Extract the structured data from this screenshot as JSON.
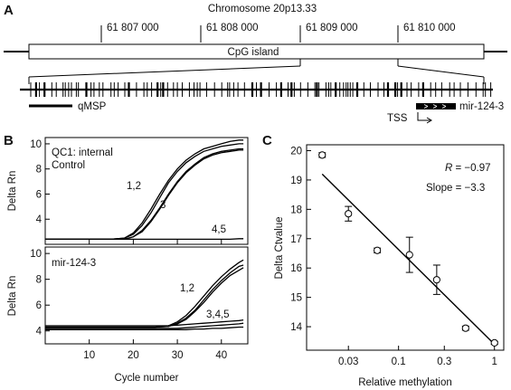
{
  "panel_a": {
    "letter": "A",
    "title": "Chromosome 20p13.33",
    "coords": [
      "61 807 000",
      "61 808 000",
      "61 809 000",
      "61 810 000"
    ],
    "cpg_label": "CpG island",
    "qmsp_label": "qMSP",
    "tss_label": "TSS",
    "gene_label": "mir-124-3"
  },
  "panel_b": {
    "letter": "B",
    "top_title_1": "QC1: internal",
    "top_title_2": "Control",
    "bottom_title": "mir-124-3",
    "ylabel": "Delta Rn",
    "xlabel": "Cycle number",
    "top_yticks": [
      "10",
      "8",
      "6",
      "4"
    ],
    "bottom_yticks": [
      "10",
      "8",
      "6",
      "4"
    ],
    "xticks": [
      "10",
      "20",
      "30",
      "40"
    ],
    "top_annotations": [
      "1,2",
      "3",
      "4,5"
    ],
    "bottom_annotations": [
      "1,2",
      "3,4,5"
    ]
  },
  "panel_c": {
    "letter": "C",
    "ylabel": "Delta Ctvalue",
    "xlabel": "Relative methylation",
    "yticks": [
      "20",
      "19",
      "18",
      "17",
      "16",
      "15",
      "14"
    ],
    "xticks": [
      "0.03",
      "0.1",
      "0.3",
      "1"
    ],
    "r_label": "R",
    "r_value": " = −0.97",
    "slope_text": "Slope = −3.3"
  },
  "chart_data": [
    {
      "type": "line",
      "panel": "B-top",
      "title": "QC1: internal Control",
      "xlabel": "Cycle number",
      "ylabel": "Delta Rn",
      "xlim": [
        0,
        46
      ],
      "ylim": [
        2,
        10.5
      ],
      "x": [
        0,
        5,
        10,
        15,
        18,
        20,
        22,
        24,
        26,
        28,
        30,
        32,
        34,
        36,
        38,
        40,
        42,
        44,
        45
      ],
      "series": [
        {
          "name": "1,2",
          "values": [
            2.4,
            2.4,
            2.4,
            2.4,
            2.5,
            2.9,
            3.7,
            4.8,
            6.0,
            7.1,
            8.0,
            8.7,
            9.2,
            9.6,
            9.8,
            10.0,
            10.2,
            10.3,
            10.3
          ]
        },
        {
          "name": "1,2",
          "values": [
            2.4,
            2.4,
            2.4,
            2.4,
            2.5,
            2.8,
            3.5,
            4.5,
            5.7,
            6.9,
            7.8,
            8.5,
            9.0,
            9.4,
            9.6,
            9.8,
            9.9,
            10.0,
            10.0
          ]
        },
        {
          "name": "3",
          "values": [
            2.4,
            2.4,
            2.4,
            2.4,
            2.4,
            2.6,
            3.1,
            3.9,
            4.9,
            6.0,
            7.0,
            7.8,
            8.4,
            8.9,
            9.2,
            9.4,
            9.5,
            9.6,
            9.6
          ]
        },
        {
          "name": "3",
          "values": [
            2.4,
            2.4,
            2.4,
            2.4,
            2.4,
            2.6,
            3.0,
            3.8,
            4.8,
            5.9,
            6.9,
            7.7,
            8.3,
            8.8,
            9.1,
            9.3,
            9.4,
            9.5,
            9.5
          ]
        },
        {
          "name": "4,5",
          "values": [
            2.4,
            2.4,
            2.4,
            2.4,
            2.4,
            2.4,
            2.4,
            2.4,
            2.4,
            2.4,
            2.4,
            2.4,
            2.4,
            2.4,
            2.4,
            2.4,
            2.4,
            2.45,
            2.45
          ]
        }
      ]
    },
    {
      "type": "line",
      "panel": "B-bottom",
      "title": "mir-124-3",
      "xlabel": "Cycle number",
      "ylabel": "Delta Rn",
      "xlim": [
        0,
        46
      ],
      "ylim": [
        3,
        10.5
      ],
      "x": [
        0,
        5,
        10,
        15,
        20,
        25,
        28,
        30,
        32,
        34,
        36,
        38,
        40,
        42,
        44,
        45
      ],
      "series": [
        {
          "name": "1,2",
          "values": [
            4.3,
            4.3,
            4.3,
            4.3,
            4.3,
            4.3,
            4.4,
            4.7,
            5.2,
            5.9,
            6.7,
            7.5,
            8.2,
            8.8,
            9.3,
            9.5
          ]
        },
        {
          "name": "1,2",
          "values": [
            4.3,
            4.3,
            4.3,
            4.3,
            4.3,
            4.3,
            4.35,
            4.6,
            5.0,
            5.6,
            6.4,
            7.2,
            7.9,
            8.5,
            9.0,
            9.1
          ]
        },
        {
          "name": "1,2",
          "values": [
            4.3,
            4.3,
            4.3,
            4.3,
            4.3,
            4.3,
            4.35,
            4.55,
            4.9,
            5.5,
            6.2,
            7.0,
            7.7,
            8.3,
            8.7,
            8.9
          ]
        },
        {
          "name": "3,4,5",
          "values": [
            4.4,
            4.4,
            4.4,
            4.4,
            4.4,
            4.4,
            4.4,
            4.45,
            4.5,
            4.55,
            4.6,
            4.65,
            4.7,
            4.75,
            4.8,
            4.85
          ]
        },
        {
          "name": "3,4,5",
          "values": [
            4.2,
            4.2,
            4.2,
            4.2,
            4.2,
            4.2,
            4.2,
            4.2,
            4.25,
            4.3,
            4.35,
            4.4,
            4.45,
            4.5,
            4.55,
            4.6
          ]
        },
        {
          "name": "3,4,5",
          "values": [
            4.1,
            4.1,
            4.1,
            4.1,
            4.1,
            4.1,
            4.1,
            4.1,
            4.1,
            4.15,
            4.15,
            4.2,
            4.2,
            4.25,
            4.3,
            4.3
          ]
        }
      ]
    },
    {
      "type": "scatter",
      "panel": "C",
      "xlabel": "Relative methylation",
      "ylabel": "Delta Ctvalue",
      "xscale": "log",
      "xlim": [
        0.011,
        1.25
      ],
      "ylim": [
        13.2,
        20.2
      ],
      "points": [
        {
          "x": 0.016,
          "y": 19.85,
          "err": 0.08
        },
        {
          "x": 0.03,
          "y": 17.85,
          "err": 0.25
        },
        {
          "x": 0.06,
          "y": 16.6,
          "err": 0.08
        },
        {
          "x": 0.13,
          "y": 16.45,
          "err": 0.6
        },
        {
          "x": 0.25,
          "y": 15.6,
          "err": 0.5
        },
        {
          "x": 0.5,
          "y": 13.95,
          "err": 0.07
        },
        {
          "x": 1.0,
          "y": 13.45,
          "err": 0.05
        }
      ],
      "fit": {
        "slope": -3.3,
        "x": [
          0.016,
          1.0
        ],
        "y": [
          19.2,
          13.4
        ]
      },
      "r": -0.97
    }
  ]
}
